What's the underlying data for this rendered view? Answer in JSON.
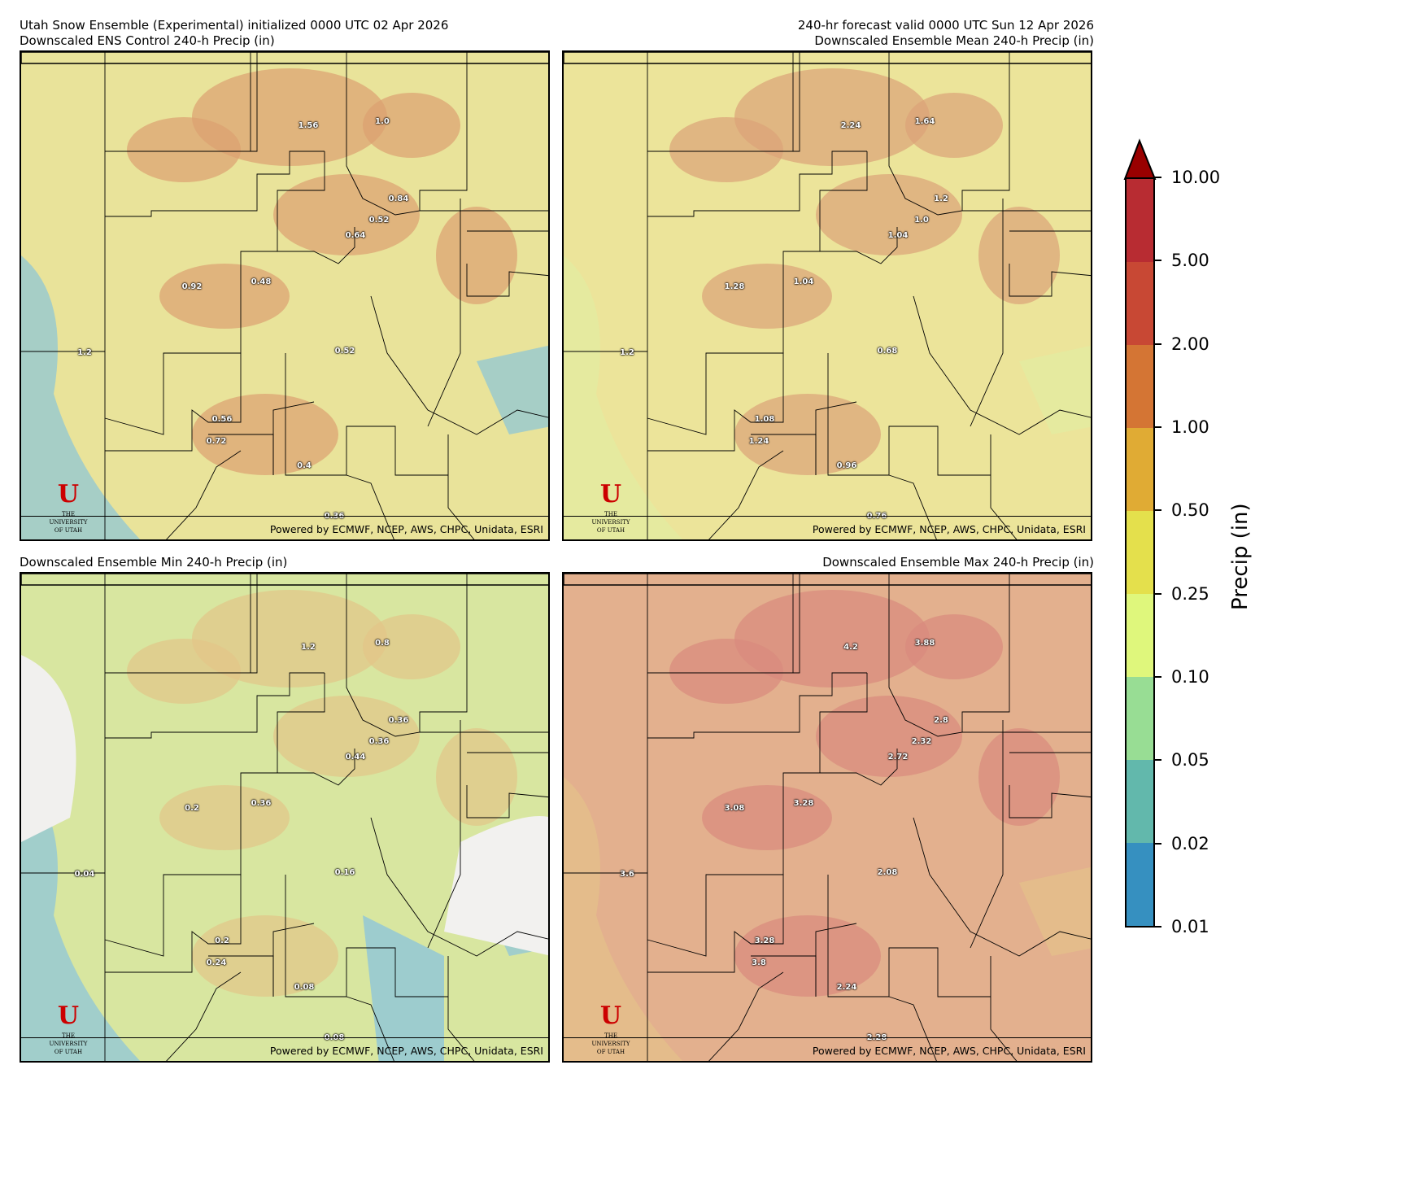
{
  "header": {
    "left_line1": "Utah Snow Ensemble (Experimental) initialized 0000 UTC 02 Apr 2026",
    "right_line1": "240-hr forecast valid 0000 UTC Sun 12 Apr 2026"
  },
  "credit": "Powered by ECMWF, NCEP, AWS, CHPC, Unidata, ESRI",
  "logo": {
    "letter": "U",
    "line1": "THE",
    "line2": "UNIVERSITY",
    "line3": "OF UTAH"
  },
  "panels": [
    {
      "title": "Downscaled ENS Control 240-h Precip (in)",
      "base": "#e9e39a",
      "accent": "#dca070",
      "wet": "#8fc7d4",
      "values": [
        "1.56",
        "1.0",
        "0.84",
        "0.52",
        "0.64",
        "0.92",
        "0.48",
        "1.2",
        "0.52",
        "0.56",
        "0.72",
        "0.4",
        "0.36"
      ]
    },
    {
      "title": "Downscaled Ensemble Mean 240-h Precip (in)",
      "base": "#ece49a",
      "accent": "#dca278",
      "wet": "#e3eca0",
      "values": [
        "2.24",
        "1.64",
        "1.2",
        "1.0",
        "1.04",
        "1.28",
        "1.04",
        "1.2",
        "0.68",
        "1.08",
        "1.24",
        "0.96",
        "0.76"
      ]
    },
    {
      "title": "Downscaled Ensemble Min 240-h Precip (in)",
      "base": "#d8e6a0",
      "accent": "#e2c488",
      "wet": "#8fc6da",
      "values": [
        "1.2",
        "0.8",
        "0.36",
        "0.36",
        "0.44",
        "0.2",
        "0.36",
        "0.04",
        "0.16",
        "0.2",
        "0.24",
        "0.08",
        "0.08"
      ]
    },
    {
      "title": "Downscaled Ensemble Max 240-h Precip (in)",
      "base": "#e3b08e",
      "accent": "#d88a7e",
      "wet": "#e4c08a",
      "values": [
        "4.2",
        "3.88",
        "2.8",
        "2.32",
        "2.72",
        "3.08",
        "3.28",
        "3.6",
        "2.08",
        "3.28",
        "3.8",
        "2.24",
        "2.28"
      ]
    }
  ],
  "colorbar": {
    "label": "Precip (in)",
    "ticks": [
      "0.01",
      "0.02",
      "0.05",
      "0.10",
      "0.25",
      "0.50",
      "1.00",
      "2.00",
      "5.00",
      "10.00"
    ],
    "colors": [
      "#3690c0",
      "#62b8ac",
      "#98dd94",
      "#dff77c",
      "#e4e04c",
      "#e0ab34",
      "#d47534",
      "#c84834",
      "#b82c32"
    ],
    "extend_color": "#990000",
    "extend": "max"
  }
}
